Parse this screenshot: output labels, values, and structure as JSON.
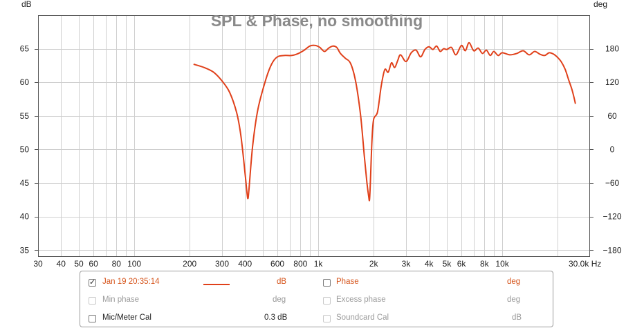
{
  "chart_data": {
    "type": "line",
    "title": "SPL & Phase, no smoothing",
    "left_axis": {
      "unit": "dB",
      "min": 34,
      "max": 70,
      "ticks": [
        35,
        40,
        45,
        50,
        55,
        60,
        65
      ]
    },
    "right_axis": {
      "unit": "deg",
      "ticks": [
        {
          "value": 180,
          "label": "180"
        },
        {
          "value": 120,
          "label": "120"
        },
        {
          "value": 60,
          "label": "60"
        },
        {
          "value": 0,
          "label": "0"
        },
        {
          "value": -60,
          "label": "−60"
        },
        {
          "value": -120,
          "label": "−120"
        },
        {
          "value": -180,
          "label": "−180"
        }
      ]
    },
    "x_axis": {
      "scale": "log",
      "min": 30,
      "max": 30000,
      "ticks": [
        {
          "value": 30,
          "label": "30"
        },
        {
          "value": 40,
          "label": "40"
        },
        {
          "value": 50,
          "label": "50"
        },
        {
          "value": 60,
          "label": "60"
        },
        {
          "value": 80,
          "label": "80"
        },
        {
          "value": 100,
          "label": "100"
        },
        {
          "value": 200,
          "label": "200"
        },
        {
          "value": 300,
          "label": "300"
        },
        {
          "value": 400,
          "label": "400"
        },
        {
          "value": 600,
          "label": "600"
        },
        {
          "value": 800,
          "label": "800"
        },
        {
          "value": 1000,
          "label": "1k"
        },
        {
          "value": 2000,
          "label": "2k"
        },
        {
          "value": 3000,
          "label": "3k"
        },
        {
          "value": 4000,
          "label": "4k"
        },
        {
          "value": 5000,
          "label": "5k"
        },
        {
          "value": 6000,
          "label": "6k"
        },
        {
          "value": 8000,
          "label": "8k"
        },
        {
          "value": 10000,
          "label": "10k"
        },
        {
          "value": 30000,
          "label": "30.0k Hz"
        }
      ]
    },
    "grid": true,
    "series": [
      {
        "name": "Jan 19 20:35:14",
        "color": "#e0401a",
        "x": [
          210,
          240,
          270,
          300,
          330,
          360,
          380,
          400,
          410,
          415,
          420,
          440,
          470,
          520,
          560,
          600,
          660,
          720,
          780,
          840,
          900,
          960,
          1020,
          1080,
          1140,
          1200,
          1260,
          1320,
          1400,
          1500,
          1600,
          1700,
          1780,
          1840,
          1880,
          1900,
          1920,
          1960,
          2000,
          2100,
          2200,
          2300,
          2400,
          2500,
          2600,
          2700,
          2800,
          3000,
          3200,
          3400,
          3600,
          3800,
          4000,
          4200,
          4400,
          4600,
          4800,
          5000,
          5300,
          5600,
          6000,
          6300,
          6600,
          7000,
          7400,
          7800,
          8200,
          8600,
          9000,
          9500,
          10000,
          11000,
          12000,
          13000,
          14000,
          15000,
          16000,
          17000,
          18000,
          19000,
          20000,
          21000,
          22000,
          23000,
          24000,
          25000
        ],
        "values": [
          62.7,
          62.2,
          61.5,
          60.2,
          58.5,
          55.5,
          52.0,
          46.5,
          43.5,
          42.7,
          44.0,
          50.5,
          56.0,
          60.5,
          62.8,
          63.8,
          64.0,
          64.0,
          64.3,
          64.8,
          65.4,
          65.5,
          65.2,
          64.6,
          65.1,
          65.4,
          65.2,
          64.3,
          63.6,
          62.8,
          60.0,
          55.0,
          49.0,
          45.0,
          43.0,
          42.5,
          45.0,
          51.5,
          54.5,
          55.6,
          59.5,
          61.9,
          61.5,
          62.9,
          62.2,
          63.2,
          64.1,
          63.1,
          64.4,
          64.8,
          63.8,
          64.9,
          65.3,
          64.9,
          65.4,
          64.6,
          65.0,
          64.9,
          65.2,
          64.1,
          65.5,
          64.7,
          65.9,
          64.7,
          65.1,
          64.3,
          64.8,
          64.0,
          64.6,
          64.0,
          64.4,
          64.1,
          64.3,
          64.7,
          64.1,
          64.6,
          64.2,
          64.0,
          64.4,
          64.2,
          63.7,
          63.0,
          61.9,
          60.3,
          58.8,
          56.8
        ]
      }
    ]
  },
  "legend": {
    "rows": [
      {
        "left": {
          "label": "Jan 19 20:35:14",
          "unit": "dB",
          "checked": true,
          "enabled": true
        },
        "right": {
          "label": "Phase",
          "unit": "deg",
          "checked": false,
          "enabled": true
        }
      },
      {
        "left": {
          "label": "Min phase",
          "unit": "deg",
          "checked": false,
          "enabled": false
        },
        "right": {
          "label": "Excess phase",
          "unit": "deg",
          "checked": false,
          "enabled": false
        }
      },
      {
        "left": {
          "label": "Mic/Meter Cal",
          "unit": "0.3 dB",
          "checked": false,
          "enabled": true
        },
        "right": {
          "label": "Soundcard Cal",
          "unit": "dB",
          "checked": false,
          "enabled": false
        }
      }
    ]
  }
}
